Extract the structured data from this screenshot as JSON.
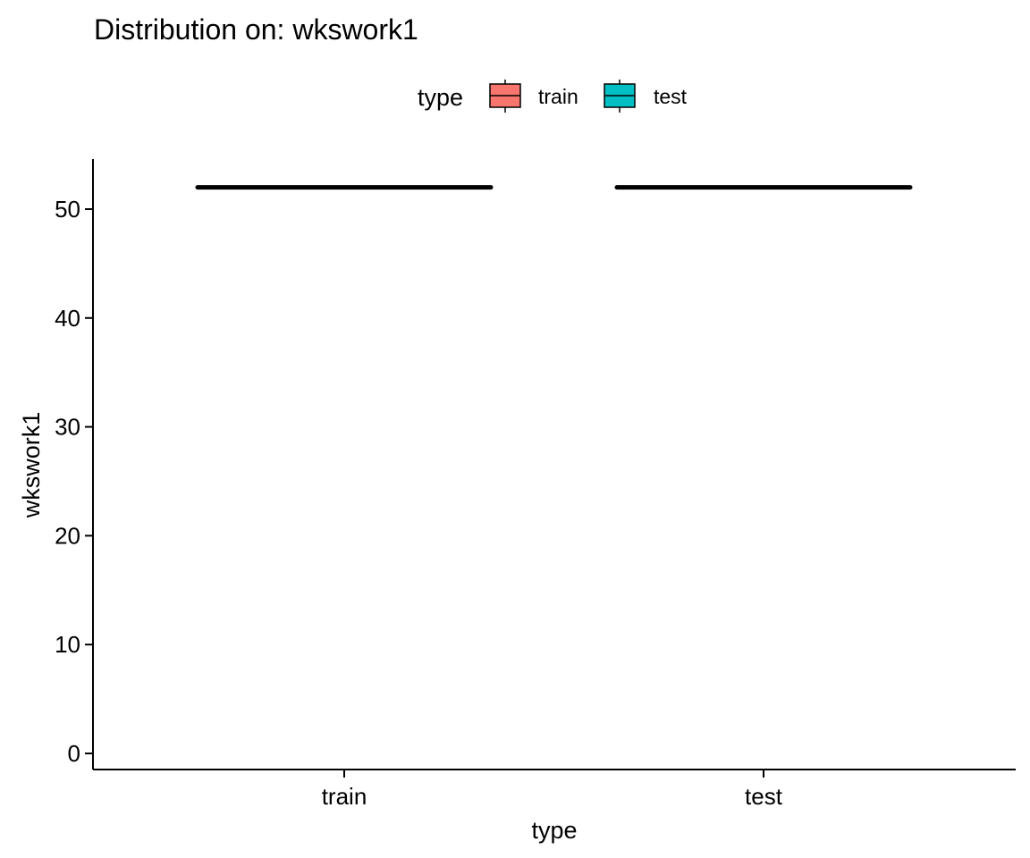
{
  "chart_data": {
    "type": "boxplot",
    "title": "Distribution on: wkswork1",
    "xlabel": "type",
    "ylabel": "wkswork1",
    "categories": [
      "train",
      "test"
    ],
    "series": [
      {
        "name": "train",
        "color": "#F8766D",
        "min": 52,
        "q1": 52,
        "median": 52,
        "q3": 52,
        "max": 52
      },
      {
        "name": "test",
        "color": "#00BFC4",
        "min": 52,
        "q1": 52,
        "median": 52,
        "q3": 52,
        "max": 52
      }
    ],
    "yticks": [
      0,
      10,
      20,
      30,
      40,
      50
    ],
    "ylim": [
      -1.3,
      54.5
    ],
    "grid": false,
    "legend": {
      "title": "type",
      "position": "top",
      "entries": [
        "train",
        "test"
      ]
    }
  }
}
